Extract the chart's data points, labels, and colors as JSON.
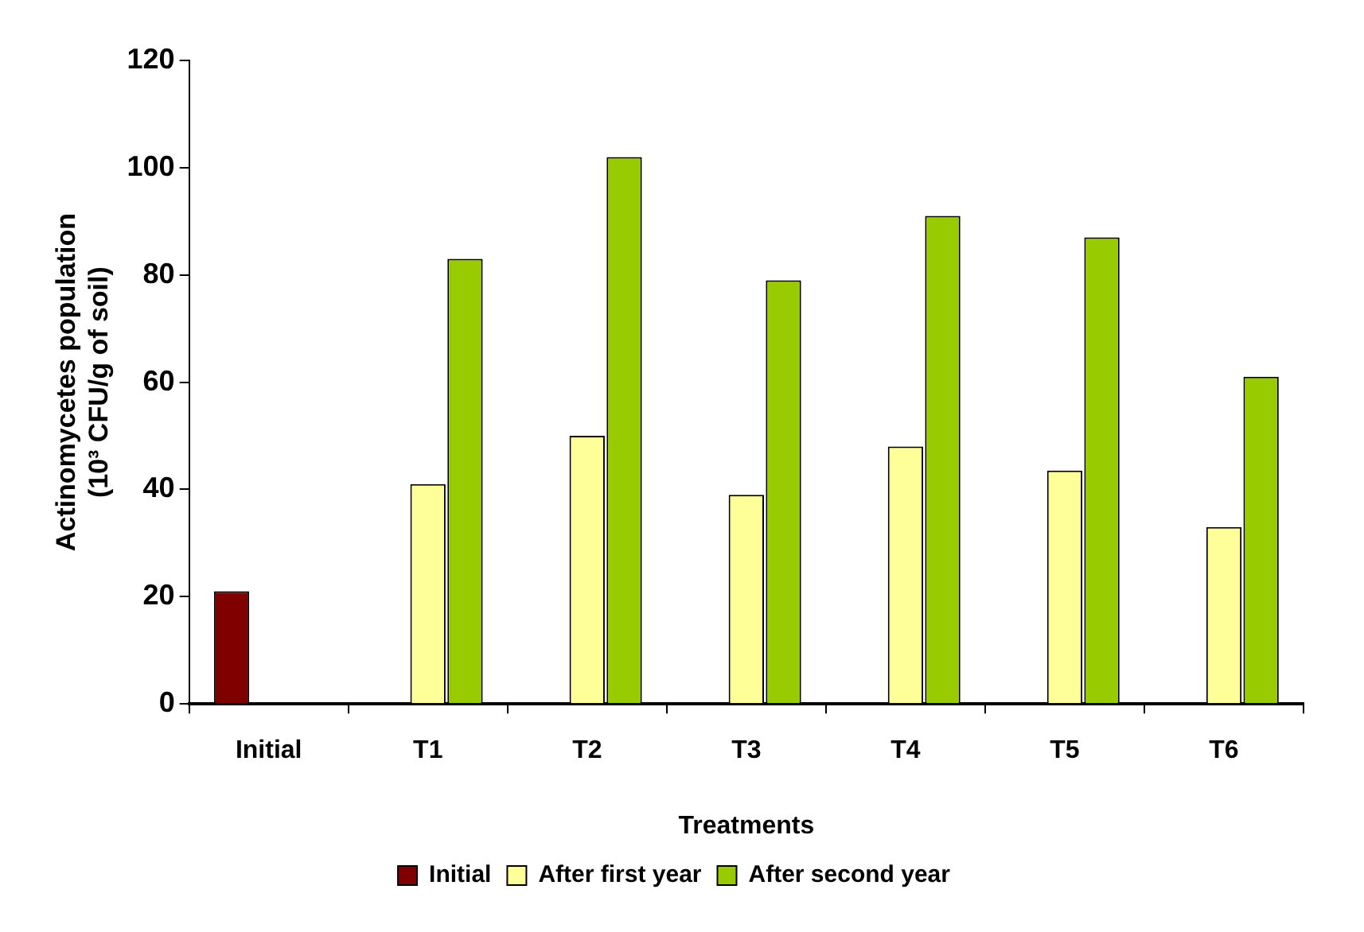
{
  "chart_data": {
    "type": "bar",
    "xlabel": "Treatments",
    "ylabel": "Actinomycetes population\n(10³ CFU/g of soil)",
    "categories": [
      "Initial",
      "T1",
      "T2",
      "T3",
      "T4",
      "T5",
      "T6"
    ],
    "series": [
      {
        "name": "Initial",
        "color": "#800000",
        "values": [
          21,
          null,
          null,
          null,
          null,
          null,
          null
        ]
      },
      {
        "name": "After first year",
        "color": "#ffff99",
        "values": [
          null,
          41,
          50,
          39,
          48,
          43.5,
          33
        ]
      },
      {
        "name": "After second year",
        "color": "#99cc00",
        "values": [
          null,
          83,
          102,
          79,
          91,
          87,
          61
        ]
      }
    ],
    "ylim": [
      0,
      120
    ],
    "yticks": [
      0,
      20,
      40,
      60,
      80,
      100,
      120
    ],
    "legend": "bottom"
  }
}
